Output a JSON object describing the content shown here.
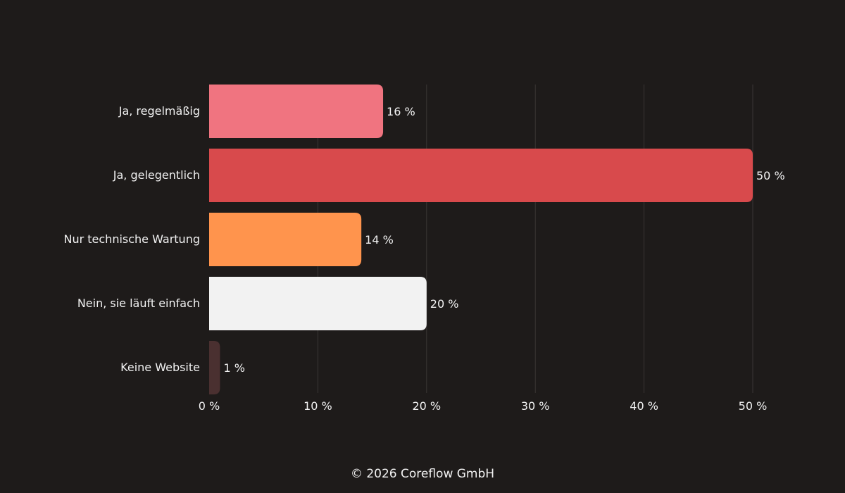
{
  "chart_data": {
    "type": "bar",
    "orientation": "horizontal",
    "categories": [
      "Ja, regelmäßig",
      "Ja, gelegentlich",
      "Nur technische Wartung",
      "Nein, sie läuft einfach",
      "Keine Website"
    ],
    "values": [
      16,
      50,
      14,
      20,
      1
    ],
    "value_labels": [
      "16 %",
      "50 %",
      "14 %",
      "20 %",
      "1 %"
    ],
    "colors": [
      "#f07480",
      "#d84a4c",
      "#ff944d",
      "#f2f2f2",
      "#4a3030"
    ],
    "xlim": [
      0,
      50
    ],
    "xticks": [
      0,
      10,
      20,
      30,
      40,
      50
    ],
    "xtick_labels": [
      "0 %",
      "10 %",
      "20 %",
      "30 %",
      "40 %",
      "50 %"
    ],
    "grid": "vertical",
    "background": "#1e1b1a",
    "text_color": "#f2f2f2"
  },
  "footer": {
    "text": "© 2026 Coreflow GmbH"
  }
}
